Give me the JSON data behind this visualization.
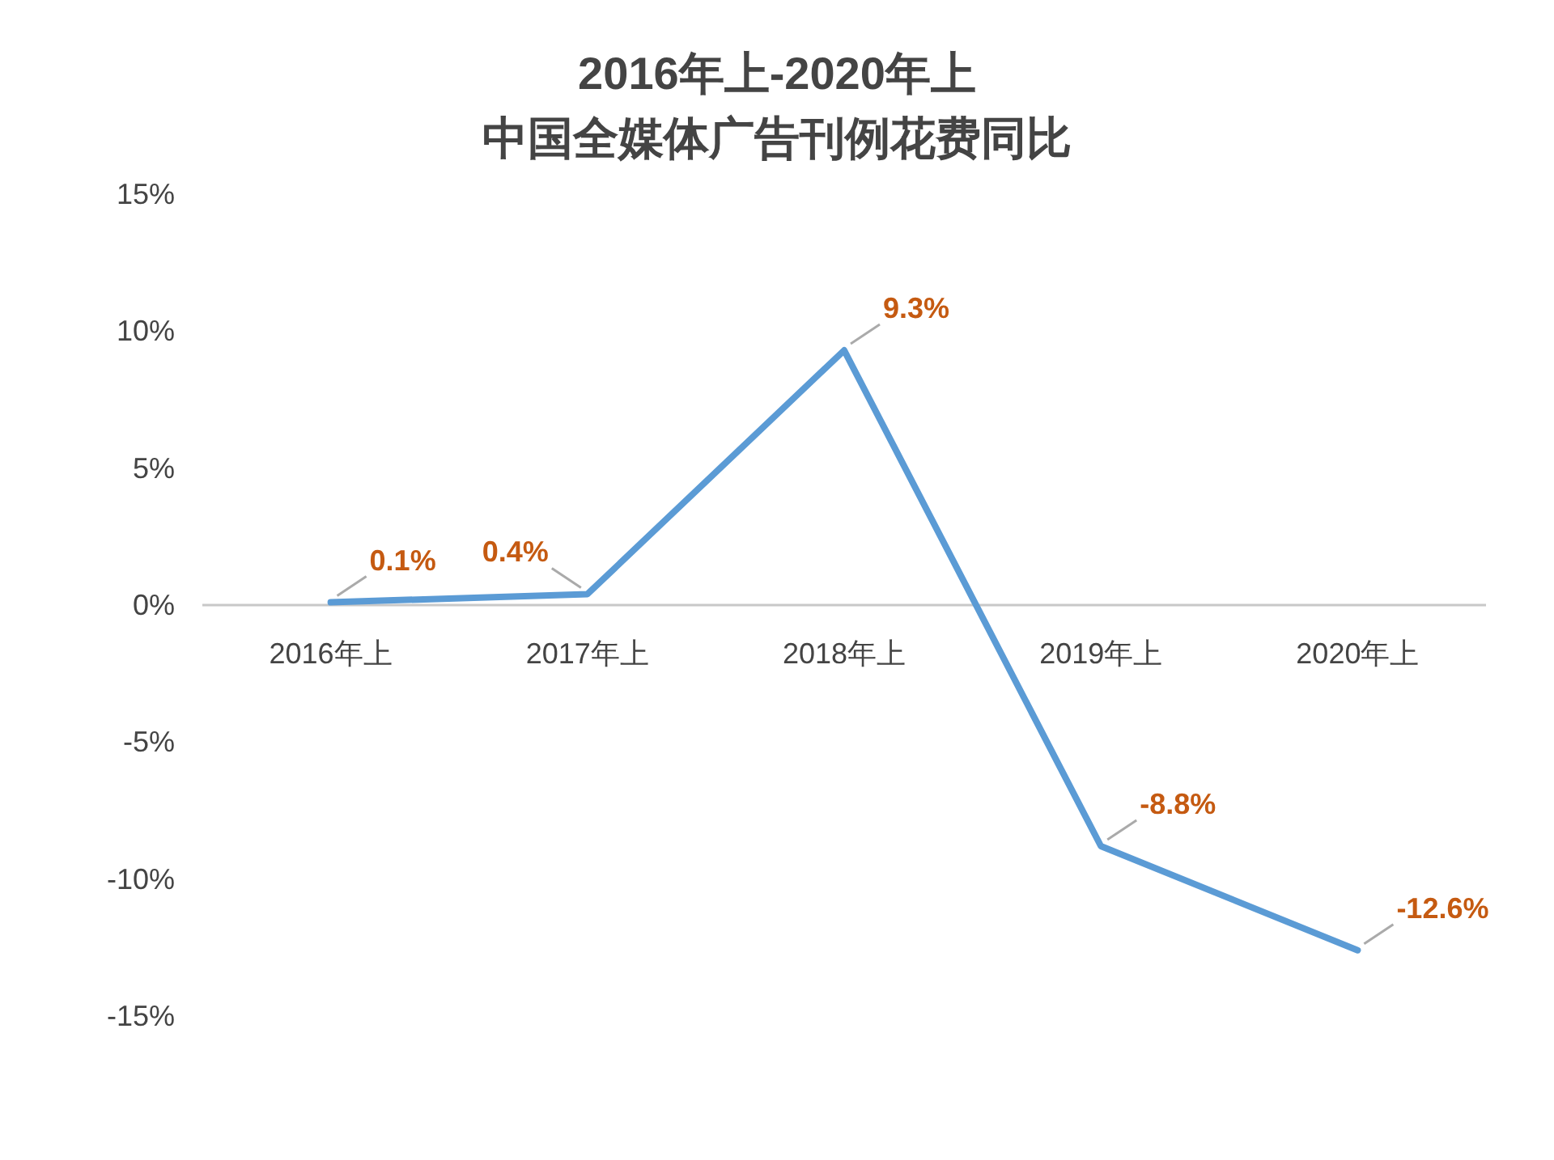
{
  "chart_data": {
    "type": "line",
    "title": "2016年上-2020年上",
    "subtitle": "中国全媒体广告刊例花费同比",
    "categories": [
      "2016年上",
      "2017年上",
      "2018年上",
      "2019年上",
      "2020年上"
    ],
    "series": [
      {
        "color": "#5b9bd5",
        "values": [
          0.1,
          0.4,
          9.3,
          -8.8,
          -12.6
        ],
        "value_labels": [
          "0.1%",
          "0.4%",
          "9.3%",
          "-8.8%",
          "-12.6%"
        ]
      }
    ],
    "ylim": [
      -15,
      15
    ],
    "yticks": [
      {
        "value": -15,
        "label": "-15%"
      },
      {
        "value": -10,
        "label": "-10%"
      },
      {
        "value": -5,
        "label": "-5%"
      },
      {
        "value": 0,
        "label": "0%"
      },
      {
        "value": 5,
        "label": "5%"
      },
      {
        "value": 10,
        "label": "10%"
      },
      {
        "value": 15,
        "label": "15%"
      }
    ]
  }
}
